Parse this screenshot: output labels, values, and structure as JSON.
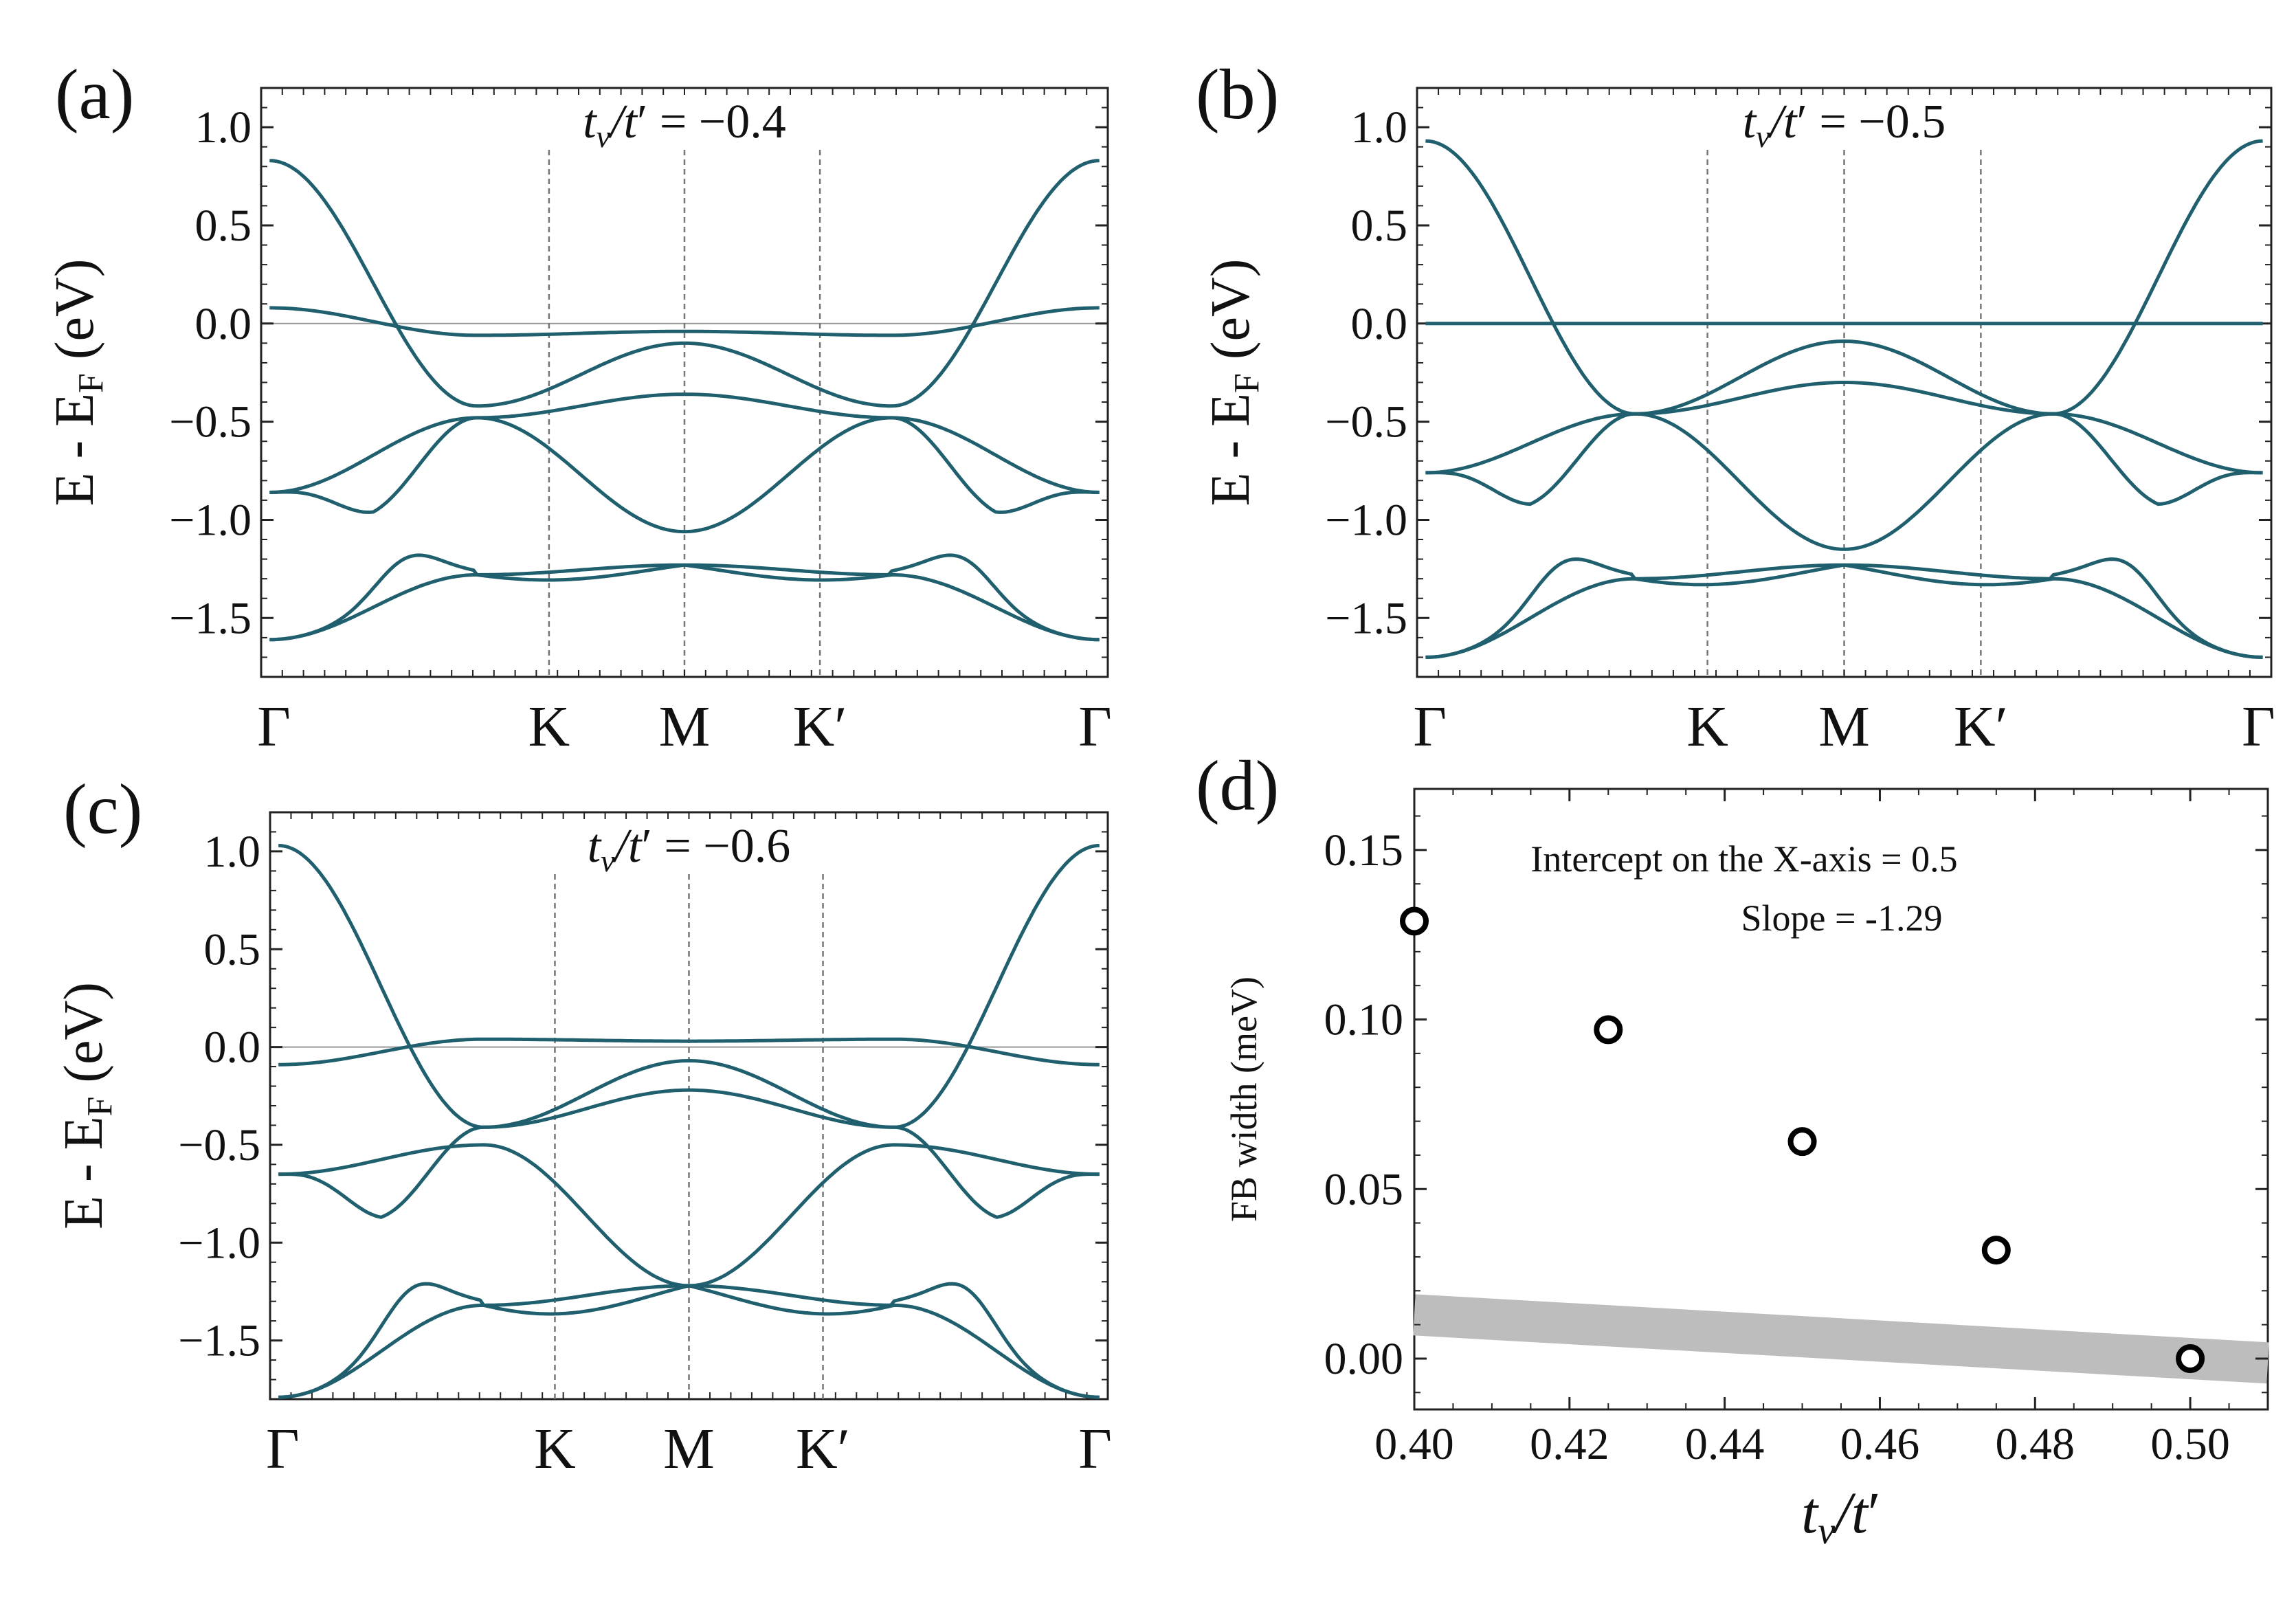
{
  "figure": {
    "colors": {
      "band": "#1f5f6e",
      "axis": "#222222",
      "zero_line": "#999999",
      "kpath_line": "#777777",
      "fit_band": "#bdbdbd",
      "marker": "#000000"
    },
    "ylabel_main": "E - E",
    "ylabel_sub": "F",
    "ylabel_unit": "(eV)",
    "ytick_labels": [
      "−1.5",
      "−1.0",
      "−0.5",
      "0.0",
      "0.5",
      "1.0"
    ],
    "kpoint_labels": [
      "Γ",
      "K",
      "M",
      "K′",
      "Γ"
    ]
  },
  "chart_data": [
    {
      "id": "a",
      "label": "(a)",
      "type": "line",
      "title": "t_v/t′ = −0.4",
      "title_var": "t",
      "title_var_sub": "v",
      "title_var2": "t",
      "title_tail": " = −0.4",
      "ylim": [
        -1.8,
        1.2
      ],
      "kpoints": [
        "Γ",
        "K",
        "M",
        "K′",
        "Γ"
      ],
      "ticks": [
        -1.5,
        -1.0,
        -0.5,
        0.0,
        0.5,
        1.0
      ],
      "bands": [
        {
          "name": "band 1",
          "nodes": [
            0.83,
            -0.42,
            -0.1,
            -0.42,
            0.83
          ]
        },
        {
          "name": "band 2 (flat)",
          "nodes": [
            0.08,
            -0.06,
            -0.04,
            -0.06,
            0.08
          ]
        },
        {
          "name": "band 3",
          "nodes": [
            -0.86,
            -0.48,
            -0.36,
            -0.48,
            -0.86
          ],
          "dip": -0.96
        },
        {
          "name": "band 4",
          "nodes": [
            -0.86,
            -0.48,
            -1.06,
            -0.48,
            -0.86
          ]
        },
        {
          "name": "band 5",
          "nodes": [
            -1.61,
            -1.28,
            -1.23,
            -1.28,
            -1.61
          ],
          "bump": -1.18
        },
        {
          "name": "band 6",
          "nodes": [
            -1.61,
            -1.28,
            -1.23,
            -1.28,
            -1.61
          ],
          "sag": -1.3
        }
      ]
    },
    {
      "id": "b",
      "label": "(b)",
      "type": "line",
      "title": "t_v/t′ = −0.5",
      "title_var": "t",
      "title_var_sub": "v",
      "title_var2": "t",
      "title_tail": " = −0.5",
      "ylim": [
        -1.8,
        1.2
      ],
      "kpoints": [
        "Γ",
        "K",
        "M",
        "K′",
        "Γ"
      ],
      "ticks": [
        -1.5,
        -1.0,
        -0.5,
        0.0,
        0.5,
        1.0
      ],
      "bands": [
        {
          "name": "band 1",
          "nodes": [
            0.93,
            -0.46,
            -0.09,
            -0.46,
            0.93
          ]
        },
        {
          "name": "band 2 (flat)",
          "nodes": [
            0.0,
            0.0,
            0.0,
            0.0,
            0.0
          ]
        },
        {
          "name": "band 3",
          "nodes": [
            -0.76,
            -0.46,
            -0.3,
            -0.46,
            -0.76
          ],
          "dip": -0.92
        },
        {
          "name": "band 4",
          "nodes": [
            -0.76,
            -0.46,
            -1.15,
            -0.46,
            -0.76
          ]
        },
        {
          "name": "band 5",
          "nodes": [
            -1.7,
            -1.3,
            -1.23,
            -1.3,
            -1.7
          ],
          "bump": -1.2
        },
        {
          "name": "band 6",
          "nodes": [
            -1.7,
            -1.3,
            -1.23,
            -1.3,
            -1.7
          ],
          "sag": -1.32
        }
      ]
    },
    {
      "id": "c",
      "label": "(c)",
      "type": "line",
      "title": "t_v/t′ = −0.6",
      "title_var": "t",
      "title_var_sub": "v",
      "title_var2": "t",
      "title_tail": " = −0.6",
      "ylim": [
        -1.8,
        1.2
      ],
      "kpoints": [
        "Γ",
        "K",
        "M",
        "K′",
        "Γ"
      ],
      "ticks": [
        -1.5,
        -1.0,
        -0.5,
        0.0,
        0.5,
        1.0
      ],
      "bands": [
        {
          "name": "band 1",
          "nodes": [
            1.03,
            -0.41,
            -0.07,
            -0.41,
            1.03
          ]
        },
        {
          "name": "band 2 (flat)",
          "nodes": [
            -0.09,
            0.04,
            0.03,
            0.04,
            -0.09
          ]
        },
        {
          "name": "band 3",
          "nodes": [
            -0.65,
            -0.41,
            -0.22,
            -0.41,
            -0.65
          ],
          "dip": -0.87
        },
        {
          "name": "band 4",
          "nodes": [
            -0.65,
            -0.5,
            -1.22,
            -0.5,
            -0.65
          ]
        },
        {
          "name": "band 5",
          "nodes": [
            -1.79,
            -1.32,
            -1.22,
            -1.32,
            -1.79
          ],
          "bump": -1.21
        },
        {
          "name": "band 6",
          "nodes": [
            -1.79,
            -1.32,
            -1.22,
            -1.32,
            -1.79
          ],
          "sag": -1.35
        }
      ]
    },
    {
      "id": "d",
      "label": "(d)",
      "type": "scatter",
      "xlabel": "t_v/t′",
      "xlabel_var": "t",
      "xlabel_var_sub": "v",
      "xlabel_var2": "t",
      "ylabel": "FB width (meV)",
      "xlim": [
        0.4,
        0.51
      ],
      "ylim": [
        -0.015,
        0.168
      ],
      "xticks": [
        0.4,
        0.42,
        0.44,
        0.46,
        0.48,
        0.5
      ],
      "xtick_labels": [
        "0.40",
        "0.42",
        "0.44",
        "0.46",
        "0.48",
        "0.50"
      ],
      "yticks": [
        0.0,
        0.05,
        0.1,
        0.15
      ],
      "ytick_labels": [
        "0.00",
        "0.05",
        "0.10",
        "0.15"
      ],
      "x": [
        0.4,
        0.425,
        0.45,
        0.475,
        0.5
      ],
      "y": [
        0.129,
        0.097,
        0.064,
        0.032,
        0.0
      ],
      "fit": {
        "intercept_x": 0.5,
        "slope": -1.29,
        "x_range": [
          0.4,
          0.51
        ]
      },
      "annotation_1": "Intercept on the X-axis = 0.5",
      "annotation_2": "Slope = -1.29"
    }
  ]
}
